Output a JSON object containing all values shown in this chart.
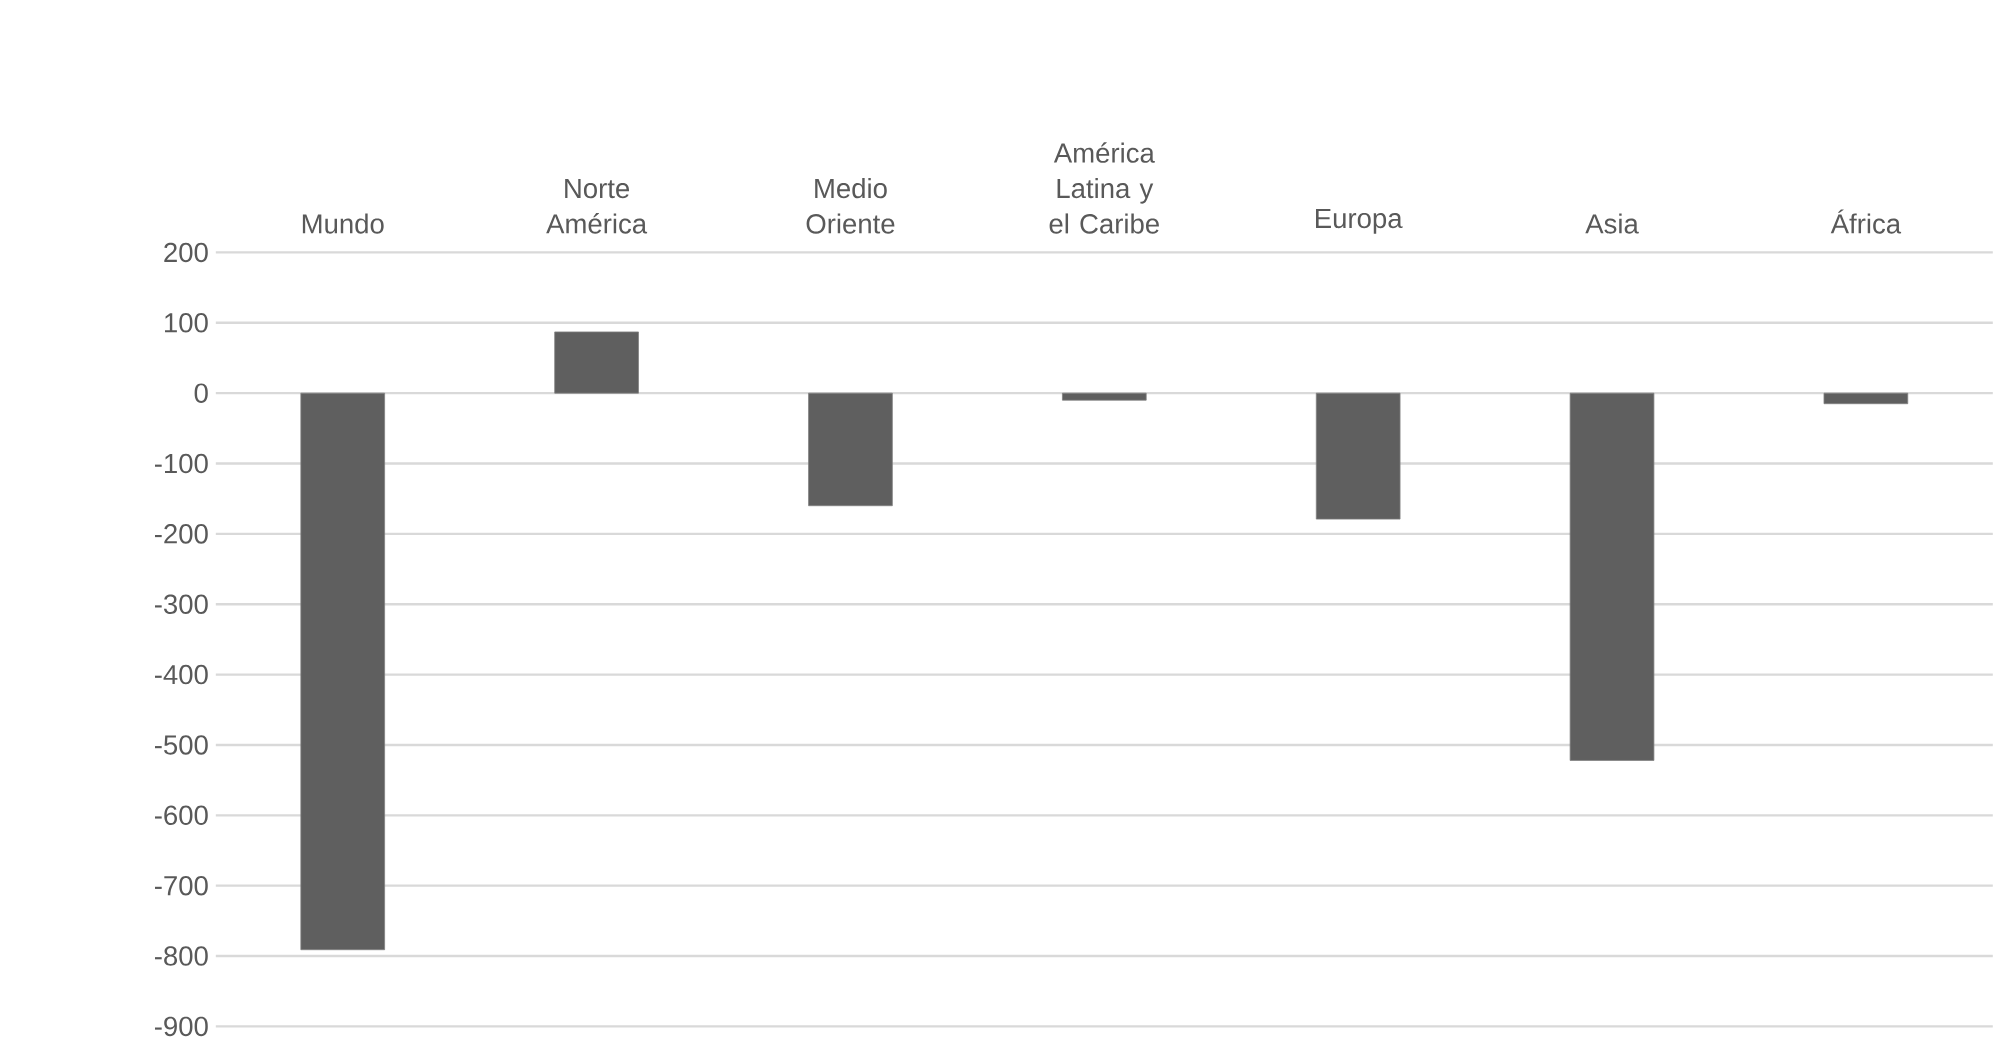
{
  "chart_data": {
    "type": "bar",
    "categories": [
      "Mundo",
      "Norte América",
      "Medio Oriente",
      "América Latina y el Caribe",
      "Europa",
      "Asia",
      "África"
    ],
    "values": [
      -791,
      87,
      -160,
      -10,
      -179,
      -522,
      -15
    ],
    "color": "#5f5f5f",
    "ylim": [
      -900,
      200
    ],
    "yticks": [
      -900,
      -800,
      -700,
      -600,
      -500,
      -400,
      -300,
      -200,
      -100,
      0,
      100,
      200
    ],
    "grid": "y"
  }
}
